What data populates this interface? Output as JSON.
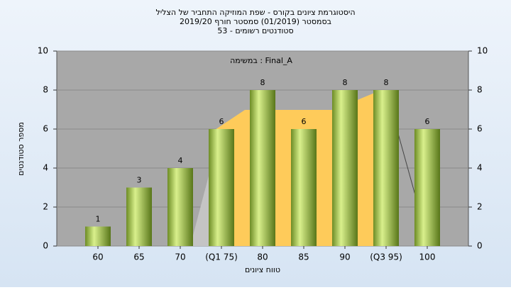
{
  "chart_data": {
    "type": "bar",
    "title": "היסטוגרמת ציונים בקורס - שפת המוזיקה התחביר של הצליל",
    "subtitle": "בסמסטר  (01/2019)  סמסטר חורף 2019/20",
    "subtitle2": "סטודנטים רשומים - 53",
    "annotation": "במשימה : Final_A",
    "y_label": "מספר סטודנטים",
    "x_label": "טווח ציונים",
    "categories": [
      "60",
      "65",
      "70",
      "(Q1 75)",
      "80",
      "85",
      "90",
      "(Q3 95)",
      "100"
    ],
    "values": [
      1,
      3,
      4,
      6,
      8,
      6,
      8,
      8,
      6
    ],
    "color": "#9bc146",
    "ylim": [
      0,
      10
    ],
    "yticks": [
      0,
      2,
      4,
      6,
      8,
      10
    ],
    "y2lim": [
      0,
      10
    ],
    "y2ticks": [
      0,
      2,
      4,
      6,
      8,
      10
    ],
    "grid": true
  }
}
